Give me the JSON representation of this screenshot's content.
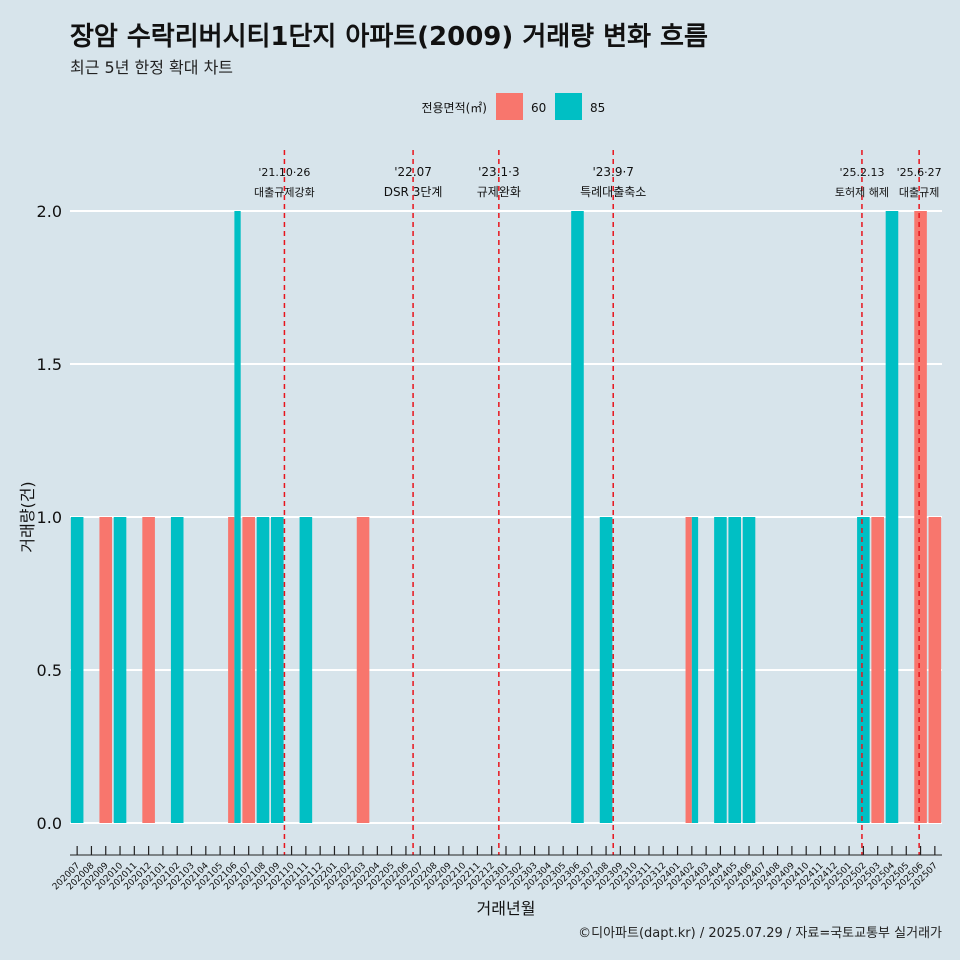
{
  "title": "장암 수락리버시티1단지 아파트(2009) 거래량 변화 흐름",
  "subtitle": "최근 5년 한정 확대 차트",
  "caption": "©디아파트(dapt.kr) / 2025.07.29 / 자료=국토교통부 실거래가",
  "colors": {
    "background": "#d7e4eb",
    "s60": "#f8766d",
    "s85": "#00bfc4",
    "vline": "#e8141c",
    "grid": "#ffffff"
  },
  "chart_data": {
    "type": "bar",
    "xlabel": "거래년월",
    "ylabel": "거래량(건)",
    "ylim": [
      0,
      2.0
    ],
    "yticks": [
      "0.0",
      "0.5",
      "1.0",
      "1.5",
      "2.0"
    ],
    "legend": {
      "title": "전용면적(㎡)",
      "placement": "top"
    },
    "categories": [
      "202007",
      "202008",
      "202009",
      "202010",
      "202011",
      "202012",
      "202101",
      "202102",
      "202103",
      "202104",
      "202105",
      "202106",
      "202107",
      "202108",
      "202109",
      "202110",
      "202111",
      "202112",
      "202201",
      "202202",
      "202203",
      "202204",
      "202205",
      "202206",
      "202207",
      "202208",
      "202209",
      "202210",
      "202211",
      "202212",
      "202301",
      "202302",
      "202303",
      "202304",
      "202305",
      "202306",
      "202307",
      "202308",
      "202309",
      "202310",
      "202311",
      "202312",
      "202401",
      "202402",
      "202403",
      "202404",
      "202405",
      "202406",
      "202407",
      "202408",
      "202409",
      "202410",
      "202411",
      "202412",
      "202501",
      "202502",
      "202503",
      "202504",
      "202505",
      "202506",
      "202507"
    ],
    "series": [
      {
        "name": "60",
        "values": [
          0,
          0,
          1,
          0,
          0,
          1,
          0,
          0,
          0,
          0,
          0,
          1,
          1,
          0,
          0,
          0,
          0,
          0,
          0,
          0,
          1,
          0,
          0,
          0,
          0,
          0,
          0,
          0,
          0,
          0,
          0,
          0,
          0,
          0,
          0,
          0,
          0,
          0,
          0,
          0,
          0,
          0,
          0,
          1,
          0,
          0,
          0,
          0,
          0,
          0,
          0,
          0,
          0,
          0,
          0,
          0,
          1,
          0,
          0,
          2,
          1
        ]
      },
      {
        "name": "85",
        "values": [
          1,
          0,
          0,
          1,
          0,
          0,
          0,
          1,
          0,
          0,
          0,
          2,
          0,
          1,
          1,
          0,
          1,
          0,
          0,
          0,
          0,
          0,
          0,
          0,
          0,
          0,
          0,
          0,
          0,
          0,
          0,
          0,
          0,
          0,
          0,
          2,
          0,
          1,
          0,
          0,
          0,
          0,
          0,
          1,
          0,
          1,
          1,
          1,
          0,
          0,
          0,
          0,
          0,
          0,
          0,
          1,
          0,
          2,
          0,
          0,
          0
        ]
      }
    ],
    "annotations": [
      {
        "at": 15.0,
        "date": "'21.10·26",
        "label": "대출규제강화"
      },
      {
        "at": 24.0,
        "date": "'22.07",
        "label": "DSR 3단계"
      },
      {
        "at": 30.0,
        "date": "'23.1·3",
        "label": "규제완화"
      },
      {
        "at": 38.0,
        "date": "'23.9·7",
        "label": "특례대출축소"
      },
      {
        "at": 55.4,
        "date": "'25.2.13",
        "label": "토허제 해제"
      },
      {
        "at": 59.4,
        "date": "'25.6·27",
        "label": "대출규제"
      }
    ]
  }
}
